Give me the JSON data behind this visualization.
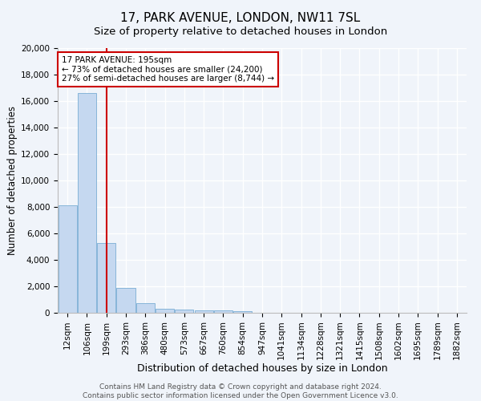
{
  "title1": "17, PARK AVENUE, LONDON, NW11 7SL",
  "title2": "Size of property relative to detached houses in London",
  "xlabel": "Distribution of detached houses by size in London",
  "ylabel": "Number of detached properties",
  "categories": [
    "12sqm",
    "106sqm",
    "199sqm",
    "293sqm",
    "386sqm",
    "480sqm",
    "573sqm",
    "667sqm",
    "760sqm",
    "854sqm",
    "947sqm",
    "1041sqm",
    "1134sqm",
    "1228sqm",
    "1321sqm",
    "1415sqm",
    "1508sqm",
    "1602sqm",
    "1695sqm",
    "1789sqm",
    "1882sqm"
  ],
  "values": [
    8100,
    16600,
    5300,
    1850,
    700,
    320,
    230,
    190,
    170,
    140,
    0,
    0,
    0,
    0,
    0,
    0,
    0,
    0,
    0,
    0,
    0
  ],
  "bar_color": "#c5d8f0",
  "bar_edge_color": "#7aadd4",
  "red_line_index": 2,
  "annotation_text": "17 PARK AVENUE: 195sqm\n← 73% of detached houses are smaller (24,200)\n27% of semi-detached houses are larger (8,744) →",
  "annotation_box_color": "#ffffff",
  "annotation_box_edge": "#cc0000",
  "ylim": [
    0,
    20000
  ],
  "yticks": [
    0,
    2000,
    4000,
    6000,
    8000,
    10000,
    12000,
    14000,
    16000,
    18000,
    20000
  ],
  "footer": "Contains HM Land Registry data © Crown copyright and database right 2024.\nContains public sector information licensed under the Open Government Licence v3.0.",
  "bg_color": "#f0f4fa",
  "plot_bg_color": "#f0f4fa",
  "grid_color": "#ffffff",
  "title1_fontsize": 11,
  "title2_fontsize": 9.5,
  "xlabel_fontsize": 9,
  "ylabel_fontsize": 8.5,
  "tick_fontsize": 7.5,
  "annotation_fontsize": 7.5,
  "footer_fontsize": 6.5
}
